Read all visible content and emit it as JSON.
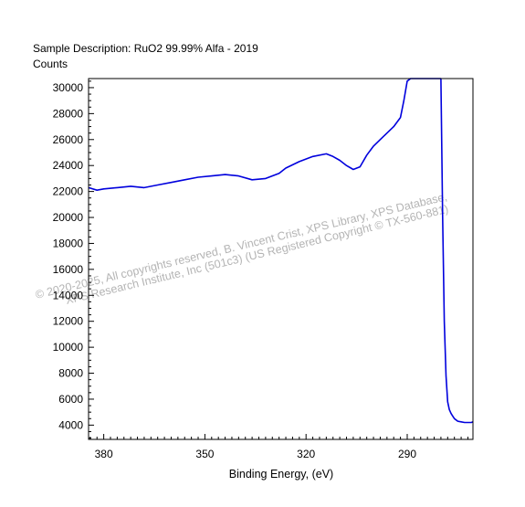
{
  "header": {
    "description": "Sample Description:  RuO2 99.99% Alfa - 2019",
    "y_unit": "Counts"
  },
  "watermark": {
    "line1": "© 2020-2025,  All copyrights reserved,   B. Vincent Crist,  XPS Library, XPS Database,",
    "line2": "XPS Research Institute, Inc (501c3)   (US Registered Copyright © TX-560-881)"
  },
  "colors": {
    "series": "#0000dd",
    "axis": "#000000",
    "watermark": "#b4b4b4"
  },
  "chart_data": {
    "type": "line",
    "title": "Sample Description:  RuO2 99.99% Alfa - 2019",
    "xlabel": "Binding Energy, (eV)",
    "ylabel": "Counts",
    "xlim": [
      384.5,
      270.5
    ],
    "x_reversed": true,
    "ylim": [
      2900,
      30700
    ],
    "xticks": [
      380,
      350,
      320,
      290
    ],
    "yticks": [
      4000,
      6000,
      8000,
      10000,
      12000,
      14000,
      16000,
      18000,
      20000,
      22000,
      24000,
      26000,
      28000,
      30000
    ],
    "grid": false,
    "legend": "none",
    "series": [
      {
        "x": [
          384.5,
          382,
          380,
          376,
          372,
          368,
          364,
          360,
          356,
          352,
          348,
          344,
          340,
          336,
          332,
          328,
          326,
          322,
          318,
          314,
          312,
          310,
          308,
          306,
          304,
          302,
          300,
          298,
          296,
          294,
          292,
          291,
          290,
          289,
          288.5,
          287.5,
          280,
          279.5,
          279,
          278.5,
          278,
          277.5,
          277,
          276.5,
          276,
          275,
          274,
          273,
          272,
          271,
          270.5
        ],
        "y": [
          22300,
          22100,
          22200,
          22300,
          22400,
          22300,
          22500,
          22700,
          22900,
          23100,
          23200,
          23300,
          23200,
          22900,
          23000,
          23400,
          23800,
          24300,
          24700,
          24900,
          24700,
          24400,
          24000,
          23700,
          23900,
          24800,
          25500,
          26000,
          26500,
          27000,
          27700,
          29000,
          30500,
          30700,
          30700,
          30700,
          30700,
          20000,
          12000,
          7800,
          5800,
          5200,
          4900,
          4700,
          4500,
          4300,
          4250,
          4200,
          4200,
          4200,
          4250
        ]
      }
    ]
  }
}
